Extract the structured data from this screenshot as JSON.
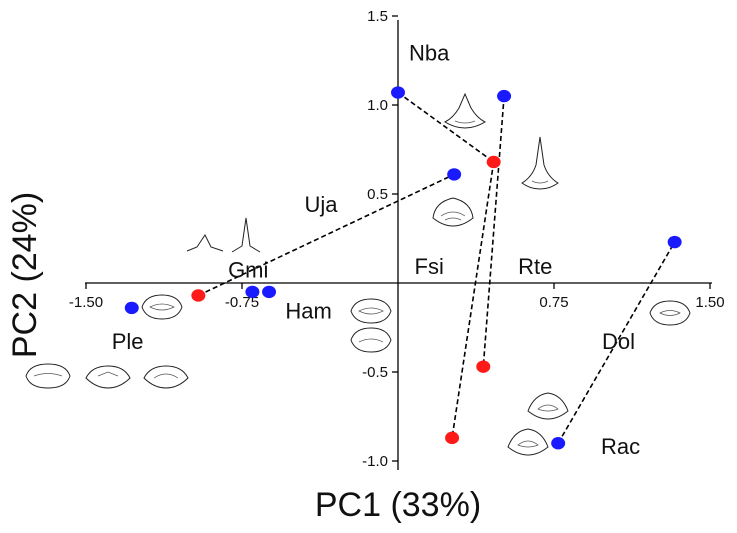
{
  "chart_data": {
    "type": "scatter",
    "title": "",
    "xlabel": "PC1 (33%)",
    "ylabel": "PC2 (24%)",
    "xlim": [
      -1.5,
      1.5
    ],
    "ylim": [
      -1.0,
      1.5
    ],
    "x_ticks": [
      -1.5,
      -0.75,
      0.75,
      1.5
    ],
    "x_tick_labels": [
      "-1.50",
      "-0.75",
      "0.75",
      "1.50"
    ],
    "y_ticks": [
      1.5,
      1.0,
      0.5,
      -0.5,
      -1.0
    ],
    "y_tick_labels": [
      "1.5",
      "1.0",
      "0.5",
      "-0.5",
      "-1.0"
    ],
    "grid": false,
    "series": [
      {
        "color": "#1a1aff",
        "points": [
          {
            "x": -1.28,
            "y": -0.14
          },
          {
            "x": -0.7,
            "y": -0.05
          },
          {
            "x": -0.62,
            "y": -0.05
          },
          {
            "x": 0.0,
            "y": 1.07
          },
          {
            "x": 0.51,
            "y": 1.05
          },
          {
            "x": 0.27,
            "y": 0.61
          },
          {
            "x": 0.77,
            "y": -0.9
          },
          {
            "x": 1.33,
            "y": 0.23
          }
        ]
      },
      {
        "color": "#ff1a1a",
        "points": [
          {
            "x": -0.96,
            "y": -0.07
          },
          {
            "x": 0.46,
            "y": 0.68
          },
          {
            "x": 0.41,
            "y": -0.47
          },
          {
            "x": 0.26,
            "y": -0.87
          }
        ]
      }
    ],
    "connections": [
      {
        "from": {
          "x": -0.96,
          "y": -0.07
        },
        "to": {
          "x": 0.27,
          "y": 0.61
        }
      },
      {
        "from": {
          "x": 0.0,
          "y": 1.07
        },
        "to": {
          "x": 0.46,
          "y": 0.68
        }
      },
      {
        "from": {
          "x": 0.51,
          "y": 1.05
        },
        "to": {
          "x": 0.41,
          "y": -0.47
        }
      },
      {
        "from": {
          "x": 0.46,
          "y": 0.68
        },
        "to": {
          "x": 0.26,
          "y": -0.87
        }
      },
      {
        "from": {
          "x": 0.77,
          "y": -0.9
        },
        "to": {
          "x": 1.33,
          "y": 0.23
        }
      }
    ],
    "annotations": [
      {
        "text": "Nba",
        "x": 0.15,
        "y": 1.25
      },
      {
        "text": "Uja",
        "x": -0.37,
        "y": 0.4
      },
      {
        "text": "Gmi",
        "x": -0.72,
        "y": 0.03
      },
      {
        "text": "Fsi",
        "x": 0.15,
        "y": 0.05
      },
      {
        "text": "Rte",
        "x": 0.66,
        "y": 0.05
      },
      {
        "text": "Ham",
        "x": -0.43,
        "y": -0.2
      },
      {
        "text": "Ple",
        "x": -1.3,
        "y": -0.37
      },
      {
        "text": "Dol",
        "x": 1.06,
        "y": -0.37
      },
      {
        "text": "Rac",
        "x": 1.07,
        "y": -0.96
      }
    ]
  }
}
